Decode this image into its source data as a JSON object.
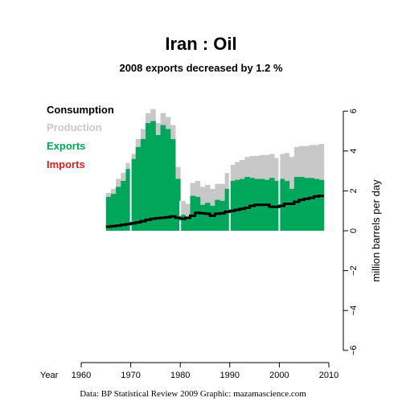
{
  "title": "Iran :  Oil",
  "subtitle": "2008 exports decreased by 1.2 %",
  "credit": "Data: BP Statistical Review 2009    Graphic: mazamascience.com",
  "colors": {
    "consumption": "#000000",
    "production": "#c8c8c8",
    "exports": "#00a65a",
    "imports": "#cc2222",
    "decade_lines": "#ffffff"
  },
  "chart_data": {
    "type": "area",
    "x_axis_label": "Year",
    "ylabel": "million barrels per day",
    "xlim": [
      1960,
      2010
    ],
    "ylim": [
      -6,
      6
    ],
    "x_ticks": [
      1960,
      1970,
      1980,
      1990,
      2000,
      2010
    ],
    "y_ticks": [
      -6,
      -4,
      -2,
      0,
      2,
      4,
      6
    ],
    "y_tick_labels": [
      "−6",
      "−4",
      "−2",
      "0",
      "2",
      "4",
      "6"
    ],
    "decade_lines": [
      1970,
      1980,
      1990,
      2000
    ],
    "legend": {
      "placement": "top-left",
      "entries": [
        "Consumption",
        "Production",
        "Exports",
        "Imports"
      ]
    },
    "x": [
      1965,
      1966,
      1967,
      1968,
      1969,
      1970,
      1971,
      1972,
      1973,
      1974,
      1975,
      1976,
      1977,
      1978,
      1979,
      1980,
      1981,
      1982,
      1983,
      1984,
      1985,
      1986,
      1987,
      1988,
      1989,
      1990,
      1991,
      1992,
      1993,
      1994,
      1995,
      1996,
      1997,
      1998,
      1999,
      2000,
      2001,
      2002,
      2003,
      2004,
      2005,
      2006,
      2007,
      2008
    ],
    "series": [
      {
        "name": "Production",
        "values": [
          1.9,
          2.1,
          2.6,
          2.9,
          3.4,
          3.85,
          4.6,
          5.1,
          5.9,
          6.1,
          5.4,
          5.9,
          5.7,
          5.3,
          3.2,
          1.5,
          1.35,
          2.4,
          2.5,
          2.2,
          2.3,
          2.1,
          2.35,
          2.35,
          2.9,
          3.3,
          3.45,
          3.55,
          3.7,
          3.75,
          3.75,
          3.8,
          3.8,
          3.85,
          3.65,
          3.85,
          3.9,
          3.7,
          4.2,
          4.25,
          4.25,
          4.3,
          4.3,
          4.35
        ]
      },
      {
        "name": "Exports",
        "values": [
          1.7,
          1.85,
          2.2,
          2.5,
          3.1,
          3.6,
          4.2,
          4.6,
          5.4,
          5.5,
          4.8,
          5.3,
          5.1,
          4.6,
          2.6,
          0.8,
          0.7,
          1.75,
          1.7,
          1.3,
          1.4,
          1.25,
          1.55,
          1.5,
          2.1,
          2.5,
          2.55,
          2.6,
          2.7,
          2.65,
          2.6,
          2.6,
          2.55,
          2.65,
          2.5,
          2.6,
          2.5,
          2.1,
          2.7,
          2.7,
          2.65,
          2.65,
          2.6,
          2.55
        ]
      },
      {
        "name": "Consumption",
        "values": [
          0.2,
          0.23,
          0.26,
          0.3,
          0.33,
          0.37,
          0.42,
          0.48,
          0.55,
          0.6,
          0.63,
          0.65,
          0.68,
          0.72,
          0.65,
          0.6,
          0.65,
          0.75,
          0.9,
          0.88,
          0.85,
          0.75,
          0.85,
          0.88,
          0.95,
          1.0,
          1.05,
          1.1,
          1.15,
          1.25,
          1.3,
          1.3,
          1.3,
          1.2,
          1.2,
          1.25,
          1.35,
          1.35,
          1.45,
          1.55,
          1.6,
          1.65,
          1.72,
          1.75
        ]
      }
    ]
  }
}
